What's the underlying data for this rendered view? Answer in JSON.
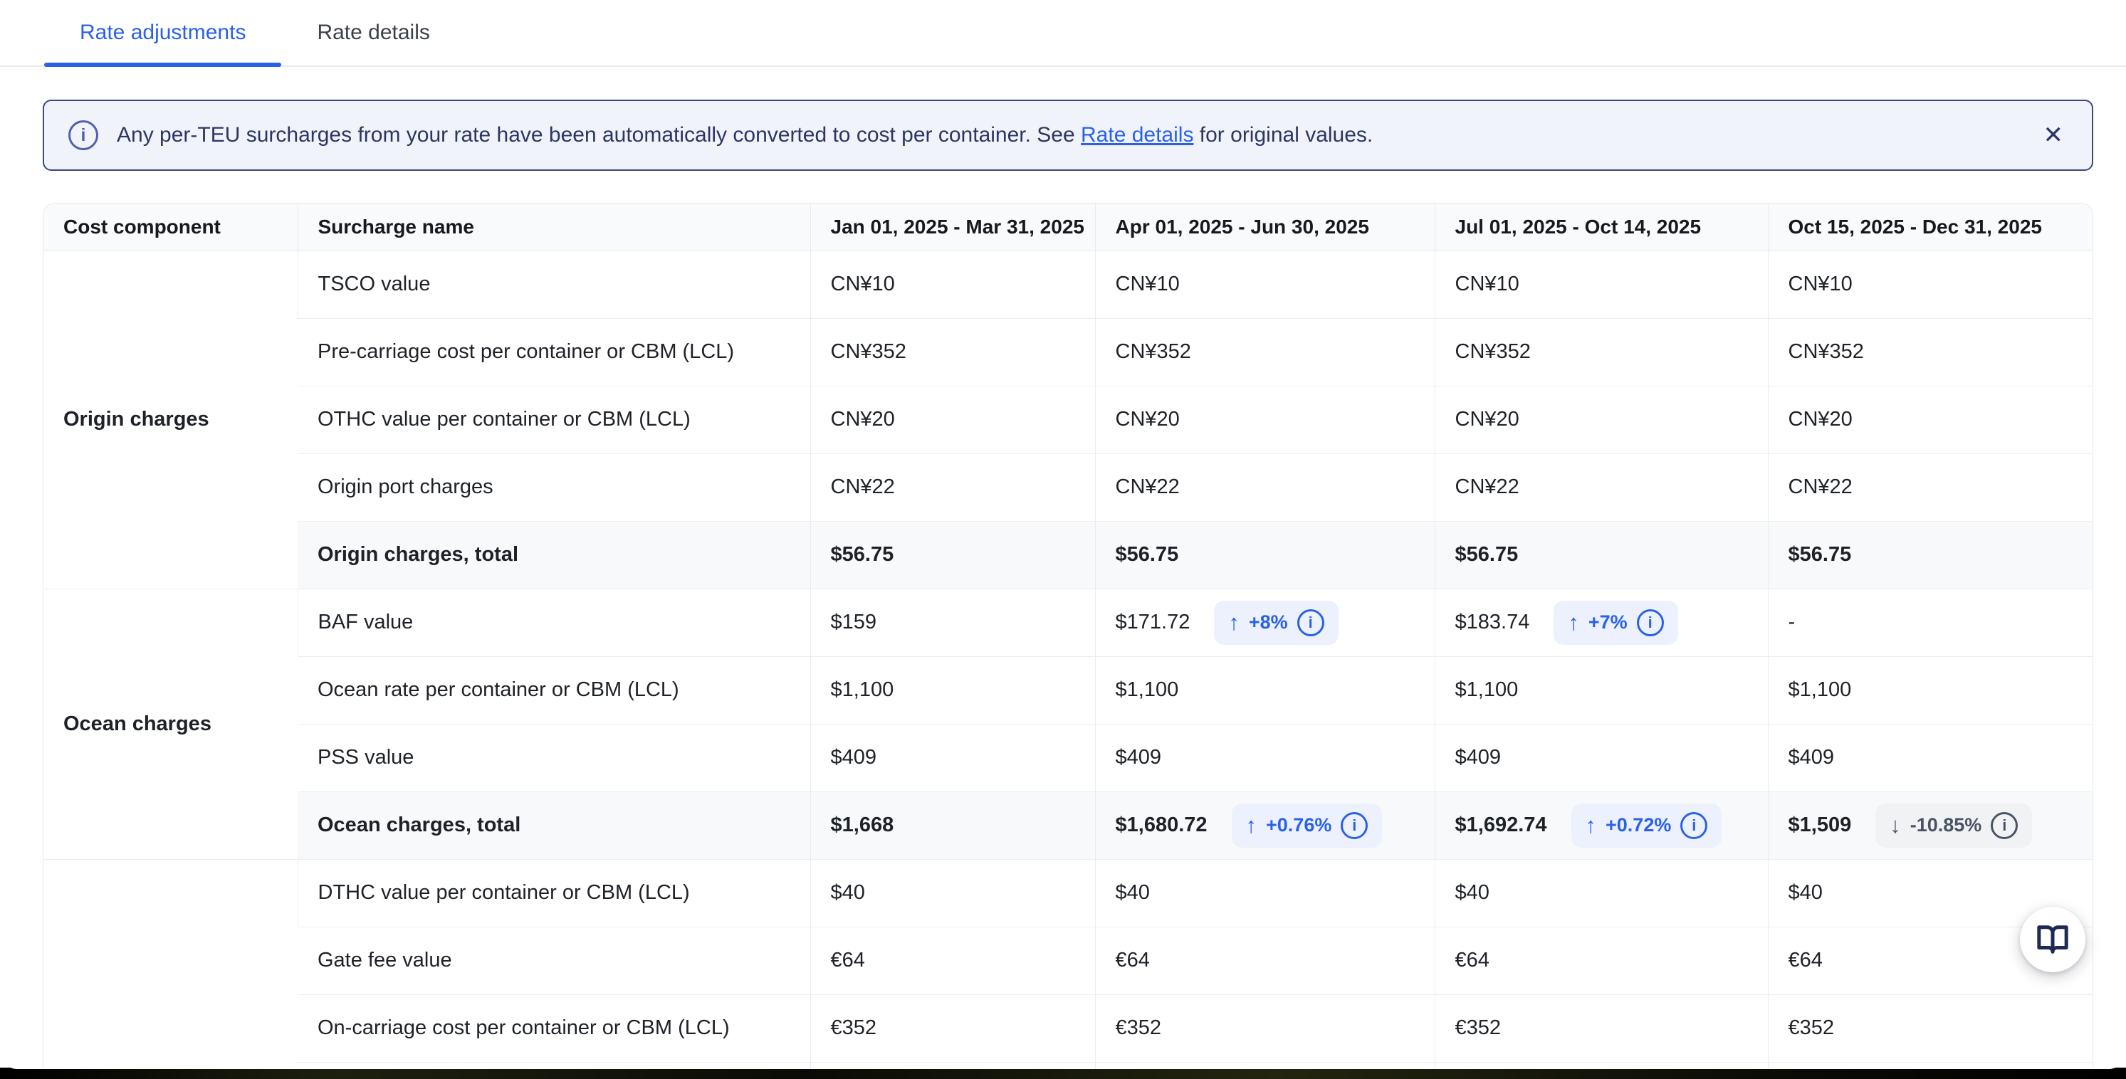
{
  "tabs": [
    {
      "label": "Rate adjustments",
      "active": true
    },
    {
      "label": "Rate details",
      "active": false
    }
  ],
  "banner": {
    "text_before": "Any per-TEU surcharges from your rate have been automatically converted to cost per container. See ",
    "link": "Rate details",
    "text_after": " for original values."
  },
  "icons": {
    "info": "i",
    "close": "✕",
    "arrow_up": "↑",
    "arrow_down": "↓"
  },
  "colors": {
    "accent_blue": "#2962e9",
    "banner_bg": "#f1f3fb",
    "banner_border": "#3a4780",
    "banner_text": "#2b3662",
    "badge_up_bg": "#edf1fe",
    "badge_down_bg": "#f1f2f4",
    "badge_down_text": "#4a5363",
    "book_icon_navy": "#1e2a52"
  },
  "table": {
    "headers": [
      "Cost component",
      "Surcharge name",
      "Jan 01, 2025 - Mar 31, 2025",
      "Apr 01, 2025 - Jun 30, 2025",
      "Jul 01, 2025 - Oct 14, 2025",
      "Oct 15, 2025 - Dec 31, 2025"
    ],
    "groups": [
      {
        "name": "Origin charges",
        "rows": [
          {
            "name": "TSCO value",
            "total": false,
            "values": [
              {
                "text": "CN¥10"
              },
              {
                "text": "CN¥10"
              },
              {
                "text": "CN¥10"
              },
              {
                "text": "CN¥10"
              }
            ]
          },
          {
            "name": "Pre-carriage cost per container or CBM (LCL)",
            "total": false,
            "values": [
              {
                "text": "CN¥352"
              },
              {
                "text": "CN¥352"
              },
              {
                "text": "CN¥352"
              },
              {
                "text": "CN¥352"
              }
            ]
          },
          {
            "name": "OTHC value per container or CBM (LCL)",
            "total": false,
            "values": [
              {
                "text": "CN¥20"
              },
              {
                "text": "CN¥20"
              },
              {
                "text": "CN¥20"
              },
              {
                "text": "CN¥20"
              }
            ]
          },
          {
            "name": "Origin port charges",
            "total": false,
            "values": [
              {
                "text": "CN¥22"
              },
              {
                "text": "CN¥22"
              },
              {
                "text": "CN¥22"
              },
              {
                "text": "CN¥22"
              }
            ]
          },
          {
            "name": "Origin charges, total",
            "total": true,
            "values": [
              {
                "text": "$56.75"
              },
              {
                "text": "$56.75"
              },
              {
                "text": "$56.75"
              },
              {
                "text": "$56.75"
              }
            ]
          }
        ]
      },
      {
        "name": "Ocean charges",
        "rows": [
          {
            "name": "BAF value",
            "total": false,
            "values": [
              {
                "text": "$159"
              },
              {
                "text": "$171.72",
                "badge": {
                  "direction": "up",
                  "value": "+8%"
                }
              },
              {
                "text": "$183.74",
                "badge": {
                  "direction": "up",
                  "value": "+7%"
                }
              },
              {
                "text": "-"
              }
            ]
          },
          {
            "name": "Ocean rate per container or CBM (LCL)",
            "total": false,
            "values": [
              {
                "text": "$1,100"
              },
              {
                "text": "$1,100"
              },
              {
                "text": "$1,100"
              },
              {
                "text": "$1,100"
              }
            ]
          },
          {
            "name": "PSS value",
            "total": false,
            "values": [
              {
                "text": "$409"
              },
              {
                "text": "$409"
              },
              {
                "text": "$409"
              },
              {
                "text": "$409"
              }
            ]
          },
          {
            "name": "Ocean charges, total",
            "total": true,
            "values": [
              {
                "text": "$1,668"
              },
              {
                "text": "$1,680.72",
                "badge": {
                  "direction": "up",
                  "value": "+0.76%"
                }
              },
              {
                "text": "$1,692.74",
                "badge": {
                  "direction": "up",
                  "value": "+0.72%"
                }
              },
              {
                "text": "$1,509",
                "badge": {
                  "direction": "down",
                  "value": "-10.85%"
                }
              }
            ]
          }
        ]
      },
      {
        "name": "",
        "rows": [
          {
            "name": "DTHC value per container or CBM (LCL)",
            "total": false,
            "values": [
              {
                "text": "$40"
              },
              {
                "text": "$40"
              },
              {
                "text": "$40"
              },
              {
                "text": "$40"
              }
            ]
          },
          {
            "name": "Gate fee value",
            "total": false,
            "values": [
              {
                "text": "€64"
              },
              {
                "text": "€64"
              },
              {
                "text": "€64"
              },
              {
                "text": "€64"
              }
            ]
          },
          {
            "name": "On-carriage cost per container or CBM (LCL)",
            "total": false,
            "values": [
              {
                "text": "€352"
              },
              {
                "text": "€352"
              },
              {
                "text": "€352"
              },
              {
                "text": "€352"
              }
            ]
          },
          {
            "name": "",
            "total": false,
            "values": [
              {
                "text": ""
              },
              {
                "text": ""
              },
              {
                "text": ""
              },
              {
                "text": ""
              }
            ]
          }
        ]
      }
    ]
  }
}
